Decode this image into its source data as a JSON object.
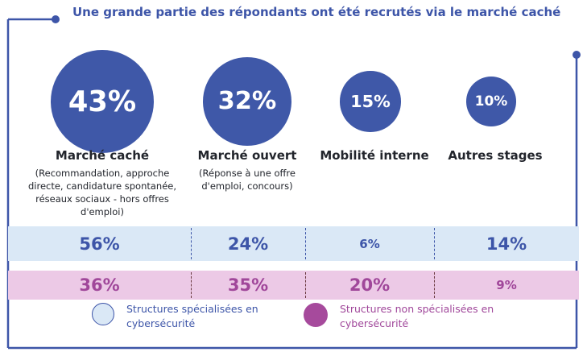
{
  "title": "Une grande partie des répondants ont été recrutés via le marché caché",
  "colors": {
    "accent": "#3d55a8",
    "circle": "#3f58a8",
    "blue_band": "#dae8f6",
    "pink_band": "#ecc9e6",
    "pink_text": "#a0479a",
    "legend_pink": "#a64a9c"
  },
  "chart_data": {
    "type": "bubble-comparison",
    "title": "Une grande partie des répondants ont été recrutés via le marché caché",
    "categories": [
      {
        "label": "Marché caché",
        "sublabel": "(Recommandation, approche directe, candidature spontanée, réseaux sociaux - hors offres d'emploi)",
        "sublines": [
          "(Recommandation, approche",
          "directe, candidature spontanée,",
          "réseaux sociaux - hors offres",
          "d'emploi)"
        ],
        "value": 43,
        "display": "43%"
      },
      {
        "label": "Marché ouvert",
        "sublabel": "(Réponse à une offre d'emploi, concours)",
        "sublines": [
          "(Réponse à une offre",
          "d'emploi, concours)"
        ],
        "value": 32,
        "display": "32%"
      },
      {
        "label": "Mobilité interne",
        "sublabel": "",
        "sublines": [],
        "value": 15,
        "display": "15%"
      },
      {
        "label": "Autres stages",
        "sublabel": "",
        "sublines": [],
        "value": 10,
        "display": "10%"
      }
    ],
    "series": [
      {
        "name": "Structures spécialisées en cybersécurité",
        "values": [
          56,
          24,
          6,
          14
        ],
        "display": [
          "56%",
          "24%",
          "6%",
          "14%"
        ]
      },
      {
        "name": "Structures non spécialisées en cybersécurité",
        "values": [
          36,
          35,
          20,
          9
        ],
        "display": [
          "36%",
          "35%",
          "20%",
          "9%"
        ]
      }
    ],
    "legend": {
      "position": "bottom-left",
      "items": [
        {
          "lines": [
            "Structures spécialisées en",
            "cybersécurité"
          ]
        },
        {
          "lines": [
            "Structures non spécialisées en",
            "cybersécurité"
          ]
        }
      ]
    }
  }
}
